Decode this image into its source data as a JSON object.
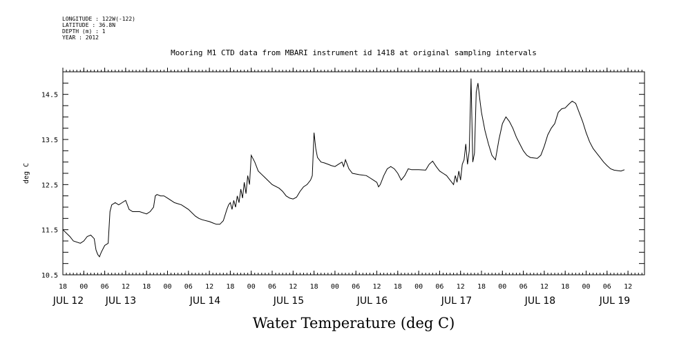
{
  "meta": {
    "longitude": "LONGITUDE : 122W(-122)",
    "latitude": "LATITUDE : 36.8N",
    "depth": "DEPTH (m) : 1",
    "year": "YEAR : 2012"
  },
  "chart_data": {
    "type": "line",
    "title": "Mooring M1 CTD data from MBARI instrument id 1418 at original sampling intervals",
    "xlabel": "Water Temperature (deg C)",
    "ylabel": "deg C",
    "x_units": "hours since JUL 12 18:00",
    "xlim": [
      0,
      165
    ],
    "ylim": [
      10.5,
      15.0
    ],
    "yticks": [
      10.5,
      11.5,
      12.5,
      13.5,
      14.5
    ],
    "hour_tick_labels": [
      "18",
      "00",
      "06",
      "12",
      "18",
      "00",
      "06",
      "12",
      "18",
      "00",
      "06",
      "12",
      "18",
      "00",
      "06",
      "12",
      "18",
      "00",
      "06",
      "12",
      "18",
      "00",
      "06",
      "12",
      "18",
      "00",
      "06",
      "12"
    ],
    "day_labels": [
      "JUL 12",
      "JUL 13",
      "JUL 14",
      "JUL 15",
      "JUL 16",
      "JUL 17",
      "JUL 18",
      "JUL 19"
    ],
    "grid": false,
    "series": [
      {
        "values": [
          [
            0,
            11.5
          ],
          [
            2,
            11.35
          ],
          [
            3,
            11.25
          ],
          [
            5,
            11.2
          ],
          [
            6,
            11.25
          ],
          [
            7,
            11.35
          ],
          [
            8,
            11.38
          ],
          [
            9,
            11.3
          ],
          [
            9.5,
            11.05
          ],
          [
            10,
            10.95
          ],
          [
            10.5,
            10.9
          ],
          [
            11,
            11.0
          ],
          [
            12,
            11.15
          ],
          [
            13,
            11.2
          ],
          [
            13.5,
            11.9
          ],
          [
            14,
            12.05
          ],
          [
            15,
            12.1
          ],
          [
            16,
            12.05
          ],
          [
            17,
            12.1
          ],
          [
            18,
            12.15
          ],
          [
            19,
            11.95
          ],
          [
            20,
            11.9
          ],
          [
            22,
            11.9
          ],
          [
            24,
            11.85
          ],
          [
            25,
            11.9
          ],
          [
            26,
            12.0
          ],
          [
            26.5,
            12.25
          ],
          [
            27,
            12.28
          ],
          [
            28,
            12.25
          ],
          [
            29,
            12.25
          ],
          [
            30,
            12.2
          ],
          [
            31,
            12.15
          ],
          [
            32,
            12.1
          ],
          [
            34,
            12.05
          ],
          [
            36,
            11.95
          ],
          [
            38,
            11.8
          ],
          [
            39,
            11.75
          ],
          [
            40,
            11.72
          ],
          [
            42,
            11.68
          ],
          [
            43,
            11.65
          ],
          [
            44,
            11.62
          ],
          [
            45,
            11.62
          ],
          [
            46,
            11.7
          ],
          [
            47,
            11.95
          ],
          [
            47.5,
            12.05
          ],
          [
            48,
            12.1
          ],
          [
            48.5,
            11.95
          ],
          [
            49,
            12.15
          ],
          [
            49.5,
            12.0
          ],
          [
            50,
            12.25
          ],
          [
            50.5,
            12.1
          ],
          [
            51,
            12.4
          ],
          [
            51.5,
            12.2
          ],
          [
            52,
            12.55
          ],
          [
            52.5,
            12.3
          ],
          [
            53,
            12.7
          ],
          [
            53.5,
            12.5
          ],
          [
            54,
            13.15
          ],
          [
            55,
            13.0
          ],
          [
            56,
            12.8
          ],
          [
            58,
            12.65
          ],
          [
            60,
            12.5
          ],
          [
            62,
            12.42
          ],
          [
            63,
            12.35
          ],
          [
            64,
            12.25
          ],
          [
            65,
            12.2
          ],
          [
            66,
            12.18
          ],
          [
            67,
            12.22
          ],
          [
            68,
            12.35
          ],
          [
            69,
            12.45
          ],
          [
            70,
            12.5
          ],
          [
            71,
            12.6
          ],
          [
            71.5,
            12.7
          ],
          [
            72,
            13.65
          ],
          [
            72.5,
            13.3
          ],
          [
            73,
            13.1
          ],
          [
            74,
            13.0
          ],
          [
            75,
            12.98
          ],
          [
            76,
            12.95
          ],
          [
            77,
            12.92
          ],
          [
            78,
            12.9
          ],
          [
            79,
            12.95
          ],
          [
            80,
            13.0
          ],
          [
            80.5,
            12.9
          ],
          [
            81,
            13.05
          ],
          [
            82,
            12.85
          ],
          [
            83,
            12.75
          ],
          [
            85,
            12.72
          ],
          [
            87,
            12.7
          ],
          [
            88,
            12.65
          ],
          [
            89,
            12.6
          ],
          [
            90,
            12.55
          ],
          [
            90.5,
            12.45
          ],
          [
            91,
            12.5
          ],
          [
            92,
            12.7
          ],
          [
            93,
            12.85
          ],
          [
            94,
            12.9
          ],
          [
            95,
            12.85
          ],
          [
            96,
            12.75
          ],
          [
            97,
            12.6
          ],
          [
            98,
            12.7
          ],
          [
            99,
            12.85
          ],
          [
            100,
            12.83
          ],
          [
            102,
            12.83
          ],
          [
            104,
            12.82
          ],
          [
            105,
            12.95
          ],
          [
            106,
            13.02
          ],
          [
            107,
            12.9
          ],
          [
            108,
            12.8
          ],
          [
            109,
            12.75
          ],
          [
            110,
            12.7
          ],
          [
            111,
            12.6
          ],
          [
            112,
            12.5
          ],
          [
            112.5,
            12.7
          ],
          [
            113,
            12.55
          ],
          [
            113.5,
            12.8
          ],
          [
            114,
            12.6
          ],
          [
            114.5,
            12.95
          ],
          [
            115,
            13.05
          ],
          [
            115.5,
            13.4
          ],
          [
            116,
            12.95
          ],
          [
            116.5,
            13.25
          ],
          [
            117,
            14.85
          ],
          [
            117.5,
            13.0
          ],
          [
            118,
            13.2
          ],
          [
            118.5,
            14.55
          ],
          [
            119,
            14.75
          ],
          [
            119.5,
            14.4
          ],
          [
            120,
            14.1
          ],
          [
            121,
            13.7
          ],
          [
            122,
            13.4
          ],
          [
            123,
            13.15
          ],
          [
            124,
            13.05
          ],
          [
            125,
            13.5
          ],
          [
            126,
            13.85
          ],
          [
            127,
            14.0
          ],
          [
            128,
            13.9
          ],
          [
            129,
            13.75
          ],
          [
            130,
            13.55
          ],
          [
            131,
            13.4
          ],
          [
            132,
            13.25
          ],
          [
            133,
            13.15
          ],
          [
            134,
            13.1
          ],
          [
            136,
            13.08
          ],
          [
            137,
            13.15
          ],
          [
            138,
            13.35
          ],
          [
            139,
            13.6
          ],
          [
            140,
            13.75
          ],
          [
            141,
            13.85
          ],
          [
            142,
            14.1
          ],
          [
            143,
            14.18
          ],
          [
            144,
            14.2
          ],
          [
            145,
            14.28
          ],
          [
            146,
            14.35
          ],
          [
            147,
            14.3
          ],
          [
            148,
            14.1
          ],
          [
            149,
            13.9
          ],
          [
            150,
            13.65
          ],
          [
            151,
            13.45
          ],
          [
            152,
            13.3
          ],
          [
            153,
            13.2
          ],
          [
            154,
            13.1
          ],
          [
            155,
            13.0
          ],
          [
            156,
            12.92
          ],
          [
            157,
            12.85
          ],
          [
            158,
            12.82
          ],
          [
            159,
            12.81
          ],
          [
            160,
            12.8
          ],
          [
            161,
            12.83
          ]
        ]
      }
    ]
  }
}
